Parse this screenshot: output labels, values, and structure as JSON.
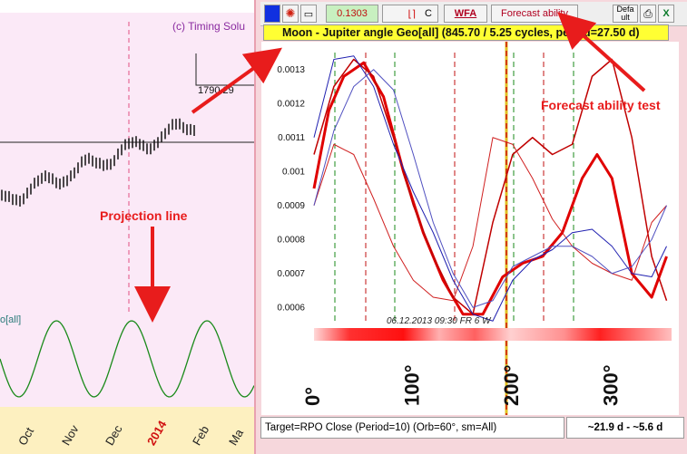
{
  "background_chart": {
    "watermark": "(c) Timing Solu",
    "price_label": "1790.29",
    "osc_label": "o[all]",
    "months": [
      "Oct",
      "Nov",
      "Dec",
      "2014",
      "Feb",
      "Ma"
    ]
  },
  "toolbar": {
    "value_field": "0.1303",
    "dropdown_value": "C",
    "wfa_label": "WFA",
    "forecast_ability_label": "Forecast ability",
    "default_label": "Defa ult"
  },
  "title": "Moon - Jupiter angle Geo[all]  (845.70 / 5.25 cycles, period=27.50 d)",
  "chart_data": {
    "type": "line",
    "xlabel": "",
    "ylabel": "",
    "x_ticks": [
      "0°",
      "100°",
      "200°",
      "300°"
    ],
    "y_ticks": [
      "0.0006",
      "0.0007",
      "0.0008",
      "0.0009",
      "0.001",
      "0.0011",
      "0.0012",
      "0.0013"
    ],
    "xlim": [
      0,
      360
    ],
    "ylim": [
      0.00055,
      0.00135
    ],
    "current_date": "06.12.2013 09:30 FR 6 W",
    "series": [
      {
        "color": "#e00000",
        "width": 3,
        "x": [
          0,
          15,
          30,
          50,
          70,
          90,
          110,
          130,
          150,
          170,
          190,
          210,
          230,
          250,
          270,
          285,
          300,
          320,
          340,
          355
        ],
        "y": [
          0.00095,
          0.00118,
          0.00128,
          0.00132,
          0.00122,
          0.001,
          0.00082,
          0.00068,
          0.00058,
          0.00058,
          0.00069,
          0.00073,
          0.00075,
          0.00082,
          0.00098,
          0.00105,
          0.00098,
          0.0007,
          0.00063,
          0.00075
        ]
      },
      {
        "color": "#c00000",
        "width": 1.5,
        "x": [
          0,
          20,
          40,
          60,
          80,
          100,
          120,
          140,
          160,
          180,
          200,
          220,
          240,
          260,
          280,
          300,
          320,
          340,
          355
        ],
        "y": [
          0.00105,
          0.00125,
          0.00133,
          0.00128,
          0.0011,
          0.0009,
          0.00075,
          0.00063,
          0.00058,
          0.00085,
          0.00105,
          0.0011,
          0.00105,
          0.00108,
          0.00128,
          0.00133,
          0.0011,
          0.00075,
          0.00062
        ]
      },
      {
        "color": "#d02020",
        "width": 1,
        "x": [
          0,
          20,
          40,
          60,
          80,
          100,
          120,
          140,
          160,
          180,
          200,
          220,
          240,
          260,
          280,
          300,
          320,
          340,
          355
        ],
        "y": [
          0.0009,
          0.00108,
          0.00105,
          0.00092,
          0.00078,
          0.00068,
          0.00063,
          0.00062,
          0.00078,
          0.0011,
          0.00108,
          0.00098,
          0.00086,
          0.00078,
          0.00073,
          0.0007,
          0.00068,
          0.00085,
          0.0009
        ]
      },
      {
        "color": "#2020b0",
        "width": 1,
        "x": [
          0,
          20,
          40,
          60,
          80,
          100,
          120,
          140,
          160,
          180,
          200,
          220,
          240,
          260,
          280,
          300,
          320,
          340,
          355
        ],
        "y": [
          0.0011,
          0.00133,
          0.00134,
          0.00125,
          0.00108,
          0.00094,
          0.00082,
          0.00068,
          0.00058,
          0.00056,
          0.00068,
          0.00074,
          0.00077,
          0.00082,
          0.00083,
          0.00078,
          0.0007,
          0.00069,
          0.00078
        ]
      },
      {
        "color": "#5050c0",
        "width": 1,
        "x": [
          0,
          20,
          40,
          60,
          80,
          100,
          120,
          140,
          160,
          180,
          200,
          220,
          240,
          260,
          280,
          300,
          320,
          340,
          355
        ],
        "y": [
          0.0009,
          0.00112,
          0.00125,
          0.0013,
          0.00124,
          0.00105,
          0.00085,
          0.0007,
          0.0006,
          0.00062,
          0.00072,
          0.00075,
          0.00078,
          0.00078,
          0.00075,
          0.0007,
          0.00072,
          0.0008,
          0.0009
        ]
      }
    ]
  },
  "status_text": "Target=RPO Close (Period=10) (Orb=60°, sm=All)",
  "range_text": "~21.9 d - ~5.6 d",
  "annotations": {
    "projection": "Projection line",
    "forecast": "Forecast ability test"
  }
}
